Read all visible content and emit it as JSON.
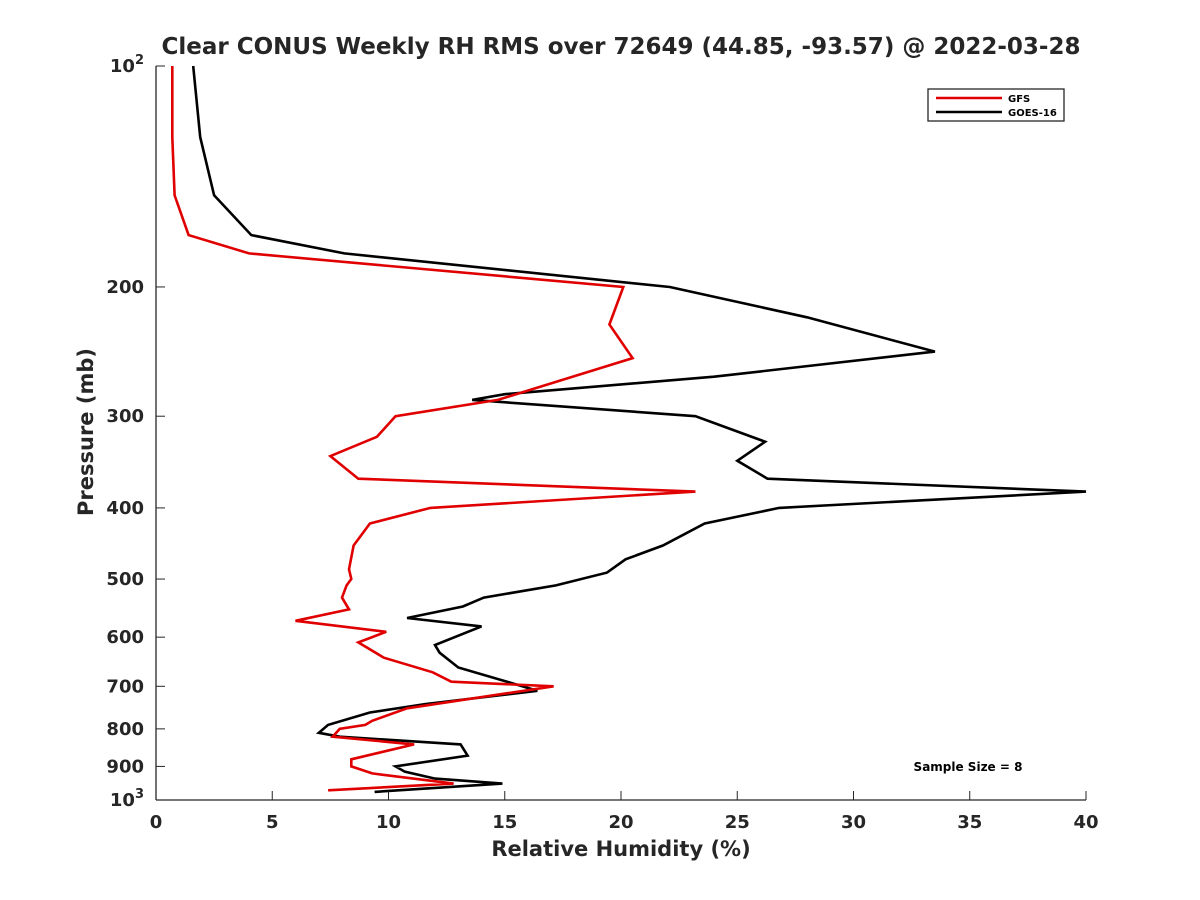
{
  "chart_data": {
    "type": "line",
    "title": "Clear CONUS Weekly RH RMS over 72649 (44.85, -93.57) @ 2022-03-28",
    "xlabel": "Relative Humidity (%)",
    "ylabel": "Pressure (mb)",
    "xlim": [
      0,
      40
    ],
    "ylim": [
      100,
      1000
    ],
    "y_scale": "log",
    "y_reversed": true,
    "grid": false,
    "legend_position": "top-right",
    "x_ticks": [
      "0",
      "5",
      "10",
      "15",
      "20",
      "25",
      "30",
      "35",
      "40"
    ],
    "y_ticks": [
      {
        "value": 100,
        "base": "10",
        "exp": "2"
      },
      {
        "value": 200,
        "label": "200"
      },
      {
        "value": 300,
        "label": "300"
      },
      {
        "value": 400,
        "label": "400"
      },
      {
        "value": 500,
        "label": "500"
      },
      {
        "value": 600,
        "label": "600"
      },
      {
        "value": 700,
        "label": "700"
      },
      {
        "value": 800,
        "label": "800"
      },
      {
        "value": 900,
        "label": "900"
      },
      {
        "value": 1000,
        "base": "10",
        "exp": "3"
      }
    ],
    "annotation": "Sample Size = 8",
    "series": [
      {
        "name": "GFS",
        "color": "#e00000",
        "points": [
          [
            0.7,
            100
          ],
          [
            0.7,
            125
          ],
          [
            0.8,
            150
          ],
          [
            1.4,
            170
          ],
          [
            4.0,
            180
          ],
          [
            20.1,
            200
          ],
          [
            19.5,
            225
          ],
          [
            20.5,
            250
          ],
          [
            14.7,
            285
          ],
          [
            10.3,
            300
          ],
          [
            9.5,
            320
          ],
          [
            7.5,
            340
          ],
          [
            8.7,
            365
          ],
          [
            23.2,
            380
          ],
          [
            11.8,
            400
          ],
          [
            9.2,
            420
          ],
          [
            8.5,
            450
          ],
          [
            8.3,
            485
          ],
          [
            8.4,
            500
          ],
          [
            8.2,
            510
          ],
          [
            8.0,
            530
          ],
          [
            8.3,
            550
          ],
          [
            6.0,
            570
          ],
          [
            9.9,
            590
          ],
          [
            8.7,
            610
          ],
          [
            9.8,
            640
          ],
          [
            11.9,
            670
          ],
          [
            12.7,
            690
          ],
          [
            17.1,
            700
          ],
          [
            10.8,
            750
          ],
          [
            9.3,
            780
          ],
          [
            9.0,
            790
          ],
          [
            7.9,
            800
          ],
          [
            7.6,
            820
          ],
          [
            11.1,
            840
          ],
          [
            8.4,
            880
          ],
          [
            8.4,
            900
          ],
          [
            9.3,
            920
          ],
          [
            12.8,
            950
          ],
          [
            7.4,
            970
          ]
        ]
      },
      {
        "name": "GOES-16",
        "color": "#000000",
        "points": [
          [
            1.6,
            100
          ],
          [
            1.9,
            125
          ],
          [
            2.5,
            150
          ],
          [
            4.1,
            170
          ],
          [
            8.1,
            180
          ],
          [
            22.1,
            200
          ],
          [
            28.0,
            220
          ],
          [
            33.5,
            245
          ],
          [
            24.0,
            265
          ],
          [
            15.0,
            280
          ],
          [
            13.6,
            285
          ],
          [
            23.2,
            300
          ],
          [
            26.2,
            325
          ],
          [
            25.0,
            345
          ],
          [
            26.3,
            365
          ],
          [
            40.0,
            380
          ],
          [
            26.8,
            400
          ],
          [
            23.6,
            420
          ],
          [
            21.8,
            450
          ],
          [
            20.2,
            470
          ],
          [
            19.4,
            490
          ],
          [
            17.2,
            510
          ],
          [
            14.1,
            530
          ],
          [
            13.2,
            545
          ],
          [
            10.8,
            565
          ],
          [
            14.0,
            580
          ],
          [
            12.0,
            615
          ],
          [
            12.2,
            630
          ],
          [
            13.0,
            660
          ],
          [
            15.1,
            690
          ],
          [
            16.4,
            710
          ],
          [
            11.6,
            740
          ],
          [
            9.2,
            760
          ],
          [
            7.4,
            790
          ],
          [
            7.0,
            810
          ],
          [
            7.9,
            820
          ],
          [
            13.1,
            840
          ],
          [
            13.4,
            870
          ],
          [
            10.3,
            900
          ],
          [
            10.7,
            915
          ],
          [
            12.0,
            935
          ],
          [
            14.9,
            950
          ],
          [
            9.4,
            975
          ]
        ]
      }
    ]
  }
}
